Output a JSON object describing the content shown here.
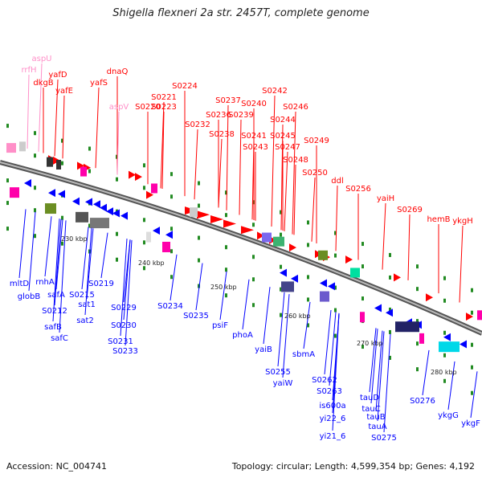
{
  "title": "Shigella flexneri 2a str. 2457T, complete genome",
  "footer": {
    "accession": "Accession: NC_004741",
    "summary": "Topology: circular; Length: 4,599,354 bp; Genes: 4,192"
  },
  "colors": {
    "forward": "#ff0000",
    "reverse": "#0000ff",
    "rna": "#ff8fc8",
    "backbone": "#888888"
  },
  "ticks": [
    "230 kbp",
    "240 kbp",
    "250 kbp",
    "260 kbp",
    "270 kbp",
    "280 kbp"
  ],
  "forward_labels": [
    {
      "text": "aspU",
      "color": "#ff8fc8"
    },
    {
      "text": "rrfH",
      "color": "#ff8fc8"
    },
    {
      "text": "dkgB",
      "color": "#ff0000"
    },
    {
      "text": "yafD",
      "color": "#ff0000"
    },
    {
      "text": "yafE",
      "color": "#ff0000"
    },
    {
      "text": "dnaQ",
      "color": "#ff0000"
    },
    {
      "text": "yafS",
      "color": "#ff0000"
    },
    {
      "text": "aspV",
      "color": "#ff8fc8"
    },
    {
      "text": "S0220",
      "color": "#ff0000"
    },
    {
      "text": "S0221",
      "color": "#ff0000"
    },
    {
      "text": "S0223",
      "color": "#ff0000"
    },
    {
      "text": "S0224",
      "color": "#ff0000"
    },
    {
      "text": "S0232",
      "color": "#ff0000"
    },
    {
      "text": "S0237",
      "color": "#ff0000"
    },
    {
      "text": "S0236",
      "color": "#ff0000"
    },
    {
      "text": "S0238",
      "color": "#ff0000"
    },
    {
      "text": "S0239",
      "color": "#ff0000"
    },
    {
      "text": "S0240",
      "color": "#ff0000"
    },
    {
      "text": "S0242",
      "color": "#ff0000"
    },
    {
      "text": "S0241",
      "color": "#ff0000"
    },
    {
      "text": "S0243",
      "color": "#ff0000"
    },
    {
      "text": "S0246",
      "color": "#ff0000"
    },
    {
      "text": "S0244",
      "color": "#ff0000"
    },
    {
      "text": "S0245",
      "color": "#ff0000"
    },
    {
      "text": "S0247",
      "color": "#ff0000"
    },
    {
      "text": "S0248",
      "color": "#ff0000"
    },
    {
      "text": "S0249",
      "color": "#ff0000"
    },
    {
      "text": "S0250",
      "color": "#ff0000"
    },
    {
      "text": "ddl",
      "color": "#ff0000"
    },
    {
      "text": "S0256",
      "color": "#ff0000"
    },
    {
      "text": "yaiH",
      "color": "#ff0000"
    },
    {
      "text": "S0269",
      "color": "#ff0000"
    },
    {
      "text": "hemB",
      "color": "#ff0000"
    },
    {
      "text": "ykgH",
      "color": "#ff0000"
    }
  ],
  "reverse_labels": [
    "mltD",
    "globB",
    "rnhA",
    "safA",
    "S0212",
    "safB",
    "safC",
    "S0215",
    "sat1",
    "sat2",
    "S0219",
    "S0229",
    "S0230",
    "S0231",
    "S0233",
    "S0234",
    "S0235",
    "psiF",
    "phoA",
    "yaiB",
    "S0255",
    "yaiW",
    "sbmA",
    "S0262",
    "S0263",
    "is600a",
    "yi22_6",
    "yi21_6",
    "tauD",
    "tauC",
    "tauB",
    "tauA",
    "S0275",
    "S0276",
    "ykgG",
    "ykgF"
  ]
}
